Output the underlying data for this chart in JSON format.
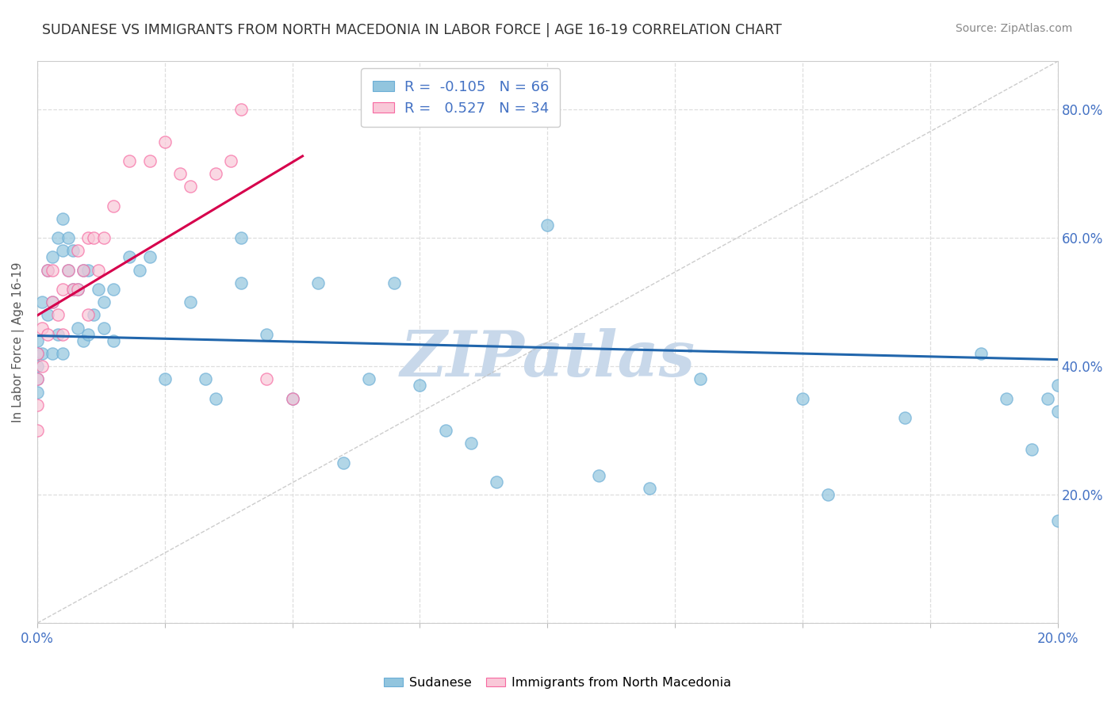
{
  "title": "SUDANESE VS IMMIGRANTS FROM NORTH MACEDONIA IN LABOR FORCE | AGE 16-19 CORRELATION CHART",
  "source": "Source: ZipAtlas.com",
  "ylabel": "In Labor Force | Age 16-19",
  "xlim": [
    0.0,
    0.2
  ],
  "ylim": [
    0.0,
    0.875
  ],
  "legend_blue_label": "Sudanese",
  "legend_pink_label": "Immigrants from North Macedonia",
  "R_blue": -0.105,
  "N_blue": 66,
  "R_pink": 0.527,
  "N_pink": 34,
  "blue_color": "#92c5de",
  "blue_edge_color": "#6baed6",
  "pink_color": "#f9c8d8",
  "pink_edge_color": "#f768a1",
  "blue_line_color": "#2166ac",
  "pink_line_color": "#d6004c",
  "scatter_alpha": 0.7,
  "scatter_size": 120,
  "blue_scatter_x": [
    0.0,
    0.0,
    0.0,
    0.0,
    0.0,
    0.001,
    0.001,
    0.002,
    0.002,
    0.003,
    0.003,
    0.003,
    0.004,
    0.004,
    0.005,
    0.005,
    0.005,
    0.006,
    0.006,
    0.007,
    0.007,
    0.008,
    0.008,
    0.009,
    0.009,
    0.01,
    0.01,
    0.011,
    0.012,
    0.013,
    0.013,
    0.015,
    0.015,
    0.018,
    0.02,
    0.022,
    0.025,
    0.03,
    0.033,
    0.035,
    0.04,
    0.04,
    0.045,
    0.05,
    0.055,
    0.06,
    0.065,
    0.07,
    0.075,
    0.08,
    0.085,
    0.09,
    0.1,
    0.11,
    0.12,
    0.13,
    0.15,
    0.155,
    0.17,
    0.185,
    0.19,
    0.195,
    0.198,
    0.2,
    0.2,
    0.2
  ],
  "blue_scatter_y": [
    0.44,
    0.42,
    0.4,
    0.38,
    0.36,
    0.5,
    0.42,
    0.55,
    0.48,
    0.57,
    0.5,
    0.42,
    0.6,
    0.45,
    0.63,
    0.58,
    0.42,
    0.6,
    0.55,
    0.58,
    0.52,
    0.52,
    0.46,
    0.55,
    0.44,
    0.55,
    0.45,
    0.48,
    0.52,
    0.5,
    0.46,
    0.52,
    0.44,
    0.57,
    0.55,
    0.57,
    0.38,
    0.5,
    0.38,
    0.35,
    0.6,
    0.53,
    0.45,
    0.35,
    0.53,
    0.25,
    0.38,
    0.53,
    0.37,
    0.3,
    0.28,
    0.22,
    0.62,
    0.23,
    0.21,
    0.38,
    0.35,
    0.2,
    0.32,
    0.42,
    0.35,
    0.27,
    0.35,
    0.37,
    0.33,
    0.16
  ],
  "pink_scatter_x": [
    0.0,
    0.0,
    0.0,
    0.0,
    0.001,
    0.001,
    0.002,
    0.002,
    0.003,
    0.003,
    0.004,
    0.005,
    0.005,
    0.006,
    0.007,
    0.008,
    0.008,
    0.009,
    0.01,
    0.01,
    0.011,
    0.012,
    0.013,
    0.015,
    0.018,
    0.022,
    0.025,
    0.028,
    0.03,
    0.035,
    0.038,
    0.04,
    0.045,
    0.05
  ],
  "pink_scatter_y": [
    0.34,
    0.3,
    0.42,
    0.38,
    0.46,
    0.4,
    0.55,
    0.45,
    0.5,
    0.55,
    0.48,
    0.52,
    0.45,
    0.55,
    0.52,
    0.58,
    0.52,
    0.55,
    0.6,
    0.48,
    0.6,
    0.55,
    0.6,
    0.65,
    0.72,
    0.72,
    0.75,
    0.7,
    0.68,
    0.7,
    0.72,
    0.8,
    0.38,
    0.35
  ],
  "watermark": "ZIPatlas",
  "watermark_color": "#c8d8ea",
  "background_color": "#ffffff",
  "grid_color": "#dedede"
}
